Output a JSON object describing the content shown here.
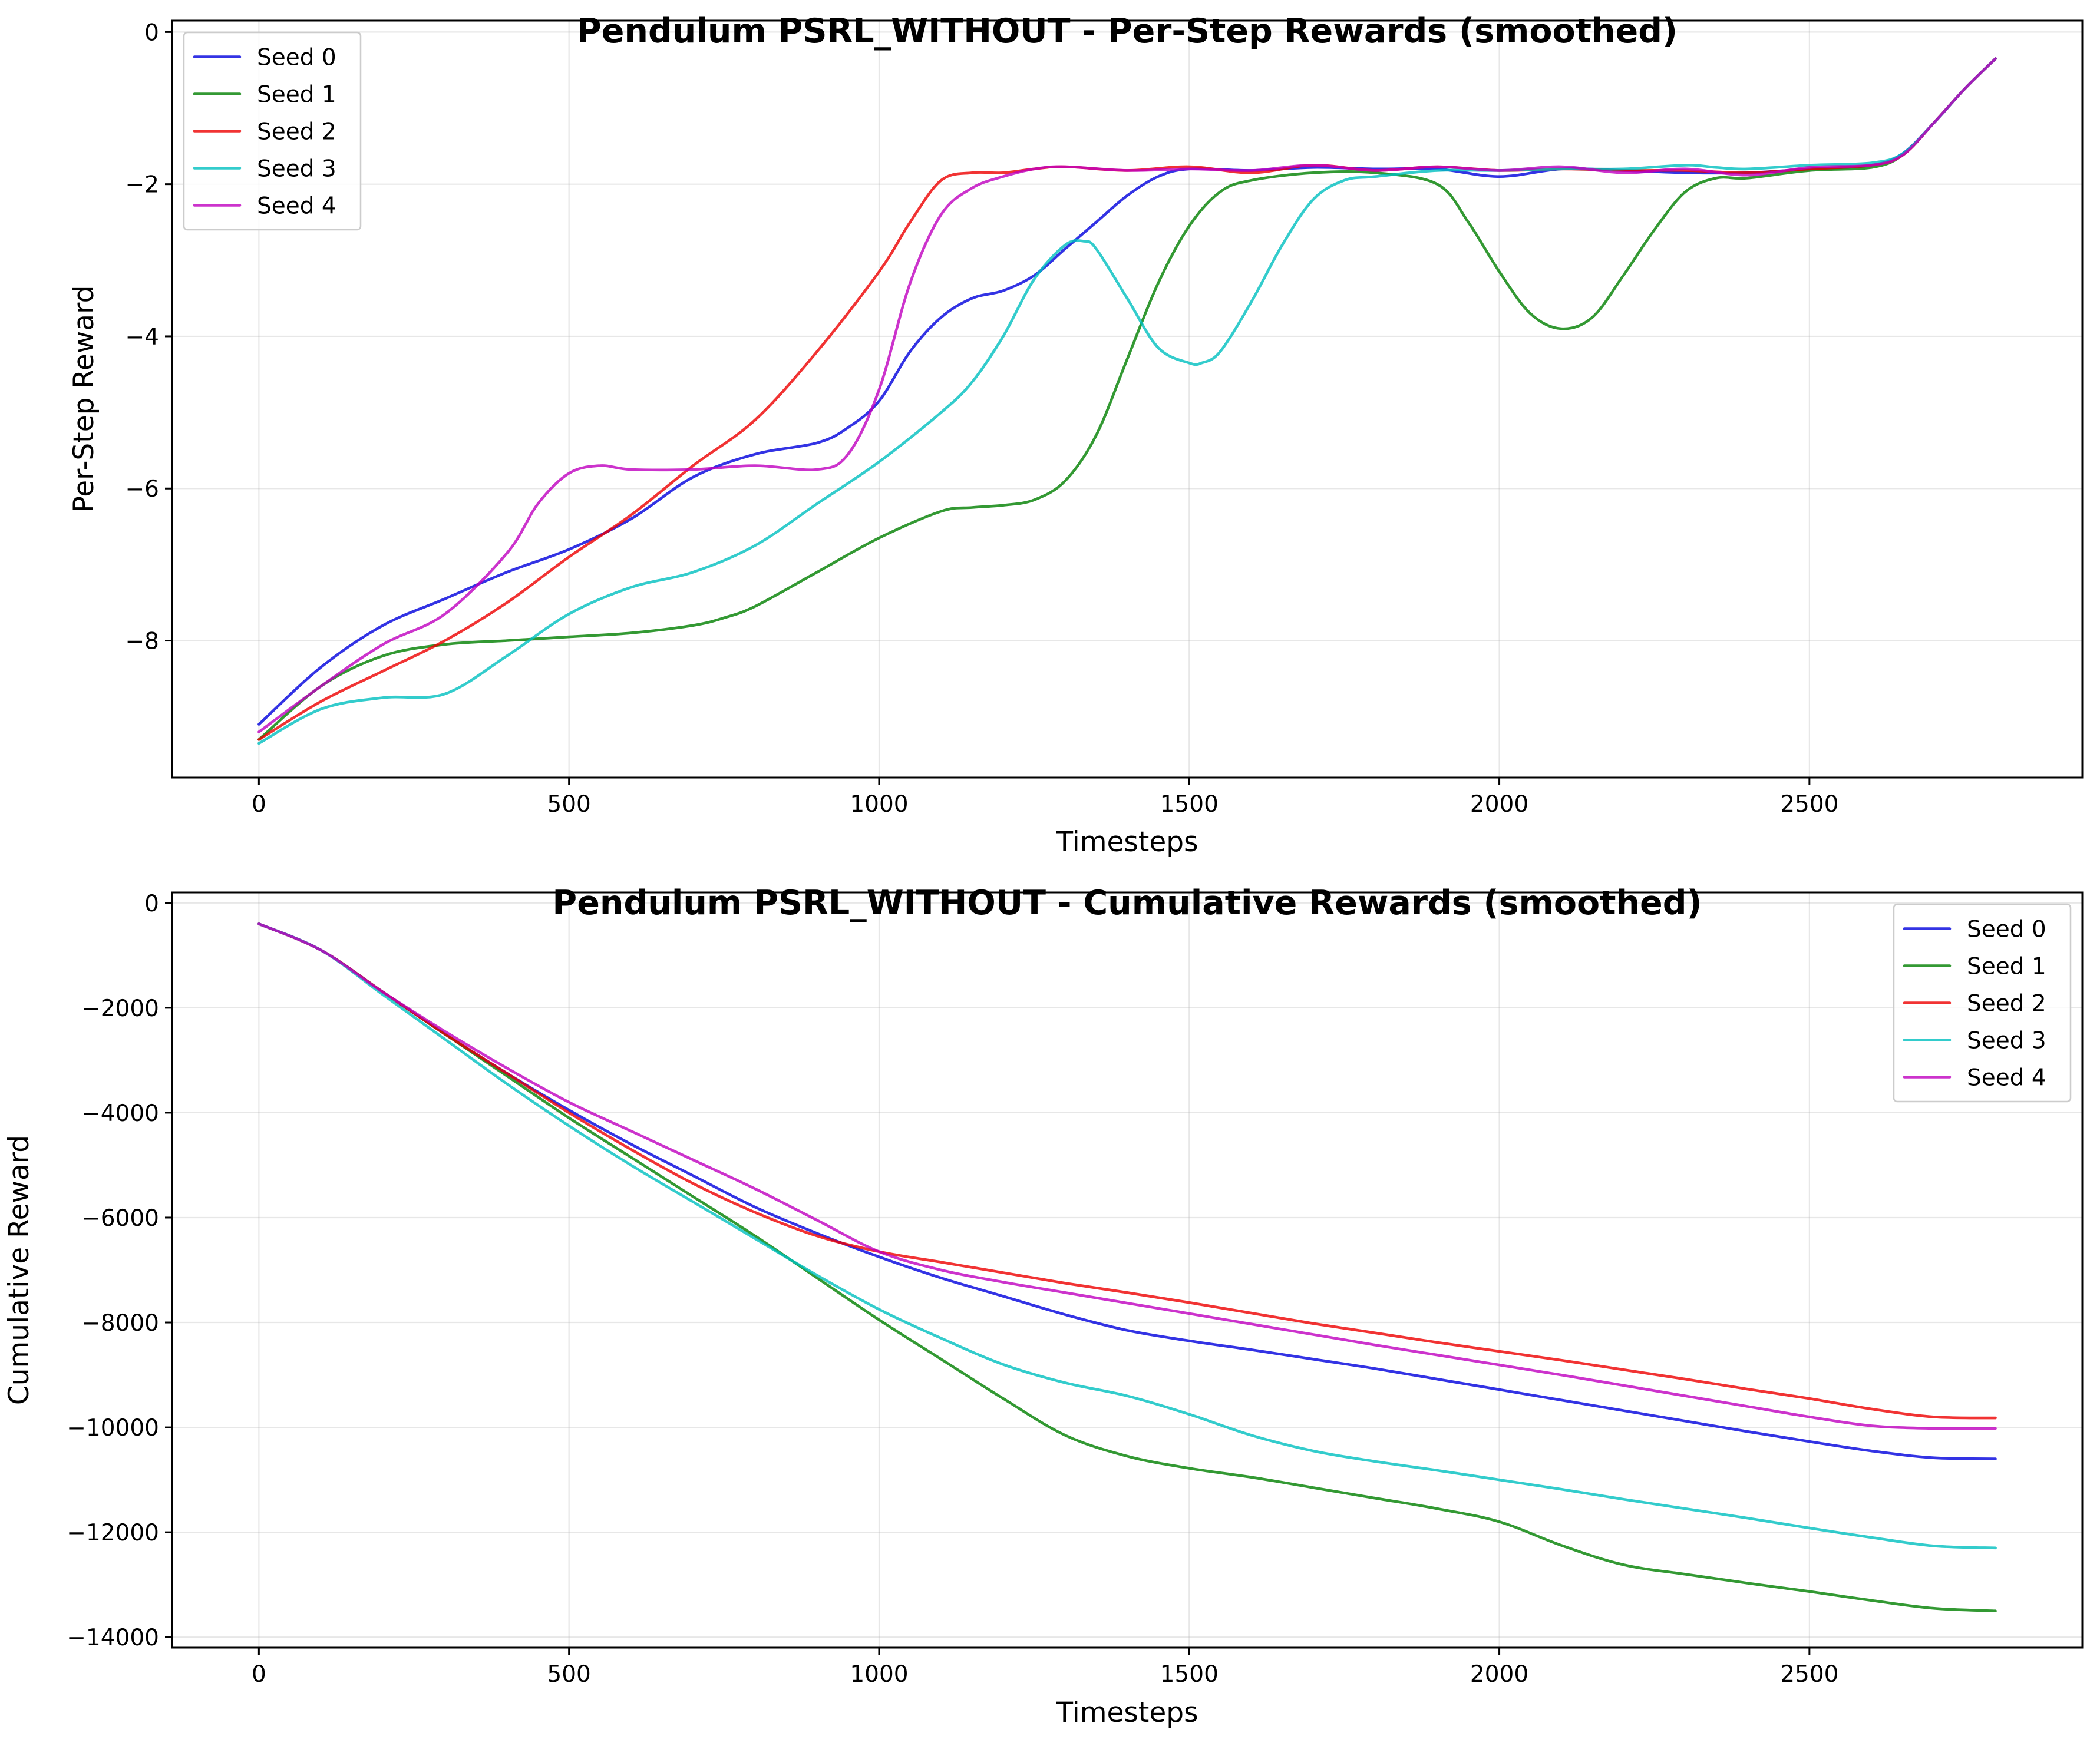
{
  "colors": {
    "seed0": "#0000dd",
    "seed1": "#008000",
    "seed2": "#ee0000",
    "seed3": "#00bfbf",
    "seed4": "#bf00bf"
  },
  "chart_data": [
    {
      "type": "line",
      "title": "Pendulum PSRL_WITHOUT - Per-Step Rewards (smoothed)",
      "xlabel": "Timesteps",
      "ylabel": "Per-Step Reward",
      "xlim": [
        -140,
        2940
      ],
      "ylim": [
        -9.8,
        0.15
      ],
      "xticks": [
        0,
        500,
        1000,
        1500,
        2000,
        2500
      ],
      "xtick_labels": [
        "0",
        "500",
        "1000",
        "1500",
        "2000",
        "2500"
      ],
      "yticks": [
        0,
        -2,
        -4,
        -6,
        -8
      ],
      "ytick_labels": [
        "0",
        "−2",
        "−4",
        "−6",
        "−8"
      ],
      "grid": true,
      "legend_position": "top-left",
      "series": [
        {
          "name": "Seed 0",
          "color_key": "seed0",
          "x": [
            0,
            100,
            200,
            300,
            400,
            500,
            600,
            700,
            800,
            900,
            950,
            1000,
            1050,
            1100,
            1150,
            1200,
            1250,
            1300,
            1350,
            1400,
            1450,
            1500,
            1600,
            1700,
            1800,
            1900,
            2000,
            2100,
            2200,
            2300,
            2400,
            2500,
            2600,
            2650,
            2700,
            2750,
            2800
          ],
          "y": [
            -9.1,
            -8.35,
            -7.8,
            -7.45,
            -7.1,
            -6.8,
            -6.4,
            -5.85,
            -5.55,
            -5.4,
            -5.2,
            -4.85,
            -4.2,
            -3.75,
            -3.5,
            -3.4,
            -3.2,
            -2.85,
            -2.5,
            -2.15,
            -1.9,
            -1.8,
            -1.82,
            -1.78,
            -1.8,
            -1.8,
            -1.9,
            -1.8,
            -1.82,
            -1.85,
            -1.85,
            -1.8,
            -1.75,
            -1.6,
            -1.2,
            -0.75,
            -0.35
          ]
        },
        {
          "name": "Seed 1",
          "color_key": "seed1",
          "x": [
            0,
            100,
            200,
            300,
            400,
            500,
            600,
            700,
            750,
            800,
            900,
            1000,
            1100,
            1150,
            1200,
            1250,
            1300,
            1350,
            1400,
            1450,
            1500,
            1550,
            1600,
            1700,
            1800,
            1900,
            1950,
            2000,
            2050,
            2100,
            2150,
            2200,
            2250,
            2300,
            2350,
            2400,
            2500,
            2600,
            2650,
            2700,
            2750,
            2800
          ],
          "y": [
            -9.3,
            -8.6,
            -8.2,
            -8.05,
            -8.0,
            -7.95,
            -7.9,
            -7.8,
            -7.7,
            -7.55,
            -7.1,
            -6.65,
            -6.3,
            -6.25,
            -6.22,
            -6.15,
            -5.9,
            -5.3,
            -4.3,
            -3.3,
            -2.55,
            -2.1,
            -1.95,
            -1.85,
            -1.85,
            -2.0,
            -2.5,
            -3.15,
            -3.7,
            -3.9,
            -3.75,
            -3.2,
            -2.6,
            -2.1,
            -1.92,
            -1.92,
            -1.82,
            -1.78,
            -1.62,
            -1.2,
            -0.75,
            -0.35
          ]
        },
        {
          "name": "Seed 2",
          "color_key": "seed2",
          "x": [
            0,
            100,
            200,
            300,
            400,
            500,
            600,
            700,
            800,
            900,
            1000,
            1050,
            1100,
            1150,
            1200,
            1250,
            1300,
            1400,
            1500,
            1600,
            1700,
            1800,
            1900,
            2000,
            2100,
            2200,
            2300,
            2400,
            2500,
            2600,
            2650,
            2700,
            2750,
            2800
          ],
          "y": [
            -9.3,
            -8.8,
            -8.4,
            -8.0,
            -7.5,
            -6.9,
            -6.35,
            -5.7,
            -5.1,
            -4.2,
            -3.15,
            -2.5,
            -1.95,
            -1.85,
            -1.85,
            -1.8,
            -1.77,
            -1.82,
            -1.77,
            -1.85,
            -1.75,
            -1.82,
            -1.77,
            -1.82,
            -1.8,
            -1.82,
            -1.82,
            -1.85,
            -1.8,
            -1.75,
            -1.62,
            -1.2,
            -0.75,
            -0.35
          ]
        },
        {
          "name": "Seed 3",
          "color_key": "seed3",
          "x": [
            0,
            100,
            200,
            300,
            400,
            500,
            600,
            700,
            800,
            900,
            1000,
            1100,
            1150,
            1200,
            1250,
            1300,
            1330,
            1350,
            1400,
            1450,
            1500,
            1520,
            1550,
            1600,
            1650,
            1700,
            1750,
            1800,
            1900,
            2000,
            2100,
            2200,
            2300,
            2350,
            2400,
            2500,
            2600,
            2650,
            2700,
            2750,
            2800
          ],
          "y": [
            -9.35,
            -8.9,
            -8.75,
            -8.7,
            -8.2,
            -7.65,
            -7.3,
            -7.1,
            -6.75,
            -6.2,
            -5.65,
            -5.0,
            -4.6,
            -4.0,
            -3.25,
            -2.8,
            -2.75,
            -2.85,
            -3.5,
            -4.15,
            -4.35,
            -4.35,
            -4.2,
            -3.55,
            -2.8,
            -2.2,
            -1.95,
            -1.9,
            -1.82,
            -1.82,
            -1.8,
            -1.8,
            -1.75,
            -1.78,
            -1.8,
            -1.75,
            -1.72,
            -1.6,
            -1.2,
            -0.75,
            -0.35
          ]
        },
        {
          "name": "Seed 4",
          "color_key": "seed4",
          "x": [
            0,
            100,
            200,
            300,
            400,
            450,
            500,
            550,
            600,
            700,
            800,
            900,
            950,
            1000,
            1050,
            1100,
            1150,
            1200,
            1250,
            1300,
            1400,
            1500,
            1600,
            1700,
            1800,
            1900,
            2000,
            2100,
            2200,
            2300,
            2400,
            2500,
            2600,
            2650,
            2700,
            2750,
            2800
          ],
          "y": [
            -9.2,
            -8.6,
            -8.05,
            -7.65,
            -6.85,
            -6.2,
            -5.8,
            -5.7,
            -5.75,
            -5.75,
            -5.7,
            -5.75,
            -5.55,
            -4.7,
            -3.3,
            -2.4,
            -2.05,
            -1.9,
            -1.8,
            -1.77,
            -1.82,
            -1.8,
            -1.82,
            -1.75,
            -1.82,
            -1.77,
            -1.82,
            -1.77,
            -1.85,
            -1.8,
            -1.88,
            -1.78,
            -1.75,
            -1.62,
            -1.2,
            -0.75,
            -0.35
          ]
        }
      ]
    },
    {
      "type": "line",
      "title": "Pendulum PSRL_WITHOUT - Cumulative Rewards (smoothed)",
      "xlabel": "Timesteps",
      "ylabel": "Cumulative Reward",
      "xlim": [
        -140,
        2940
      ],
      "ylim": [
        -14200,
        200
      ],
      "xticks": [
        0,
        500,
        1000,
        1500,
        2000,
        2500
      ],
      "xtick_labels": [
        "0",
        "500",
        "1000",
        "1500",
        "2000",
        "2500"
      ],
      "yticks": [
        0,
        -2000,
        -4000,
        -6000,
        -8000,
        -10000,
        -12000,
        -14000
      ],
      "ytick_labels": [
        "0",
        "−2000",
        "−4000",
        "−6000",
        "−8000",
        "−10000",
        "−12000",
        "−14000"
      ],
      "grid": true,
      "legend_position": "top-right",
      "series": [
        {
          "name": "Seed 0",
          "color_key": "seed0",
          "x": [
            0,
            100,
            200,
            300,
            400,
            500,
            600,
            700,
            800,
            900,
            1000,
            1100,
            1200,
            1300,
            1400,
            1500,
            1600,
            1700,
            1800,
            1900,
            2000,
            2100,
            2200,
            2300,
            2400,
            2500,
            2600,
            2700,
            2800
          ],
          "y": [
            -400,
            -900,
            -1700,
            -2500,
            -3250,
            -3950,
            -4600,
            -5200,
            -5800,
            -6300,
            -6750,
            -7150,
            -7500,
            -7850,
            -8150,
            -8350,
            -8520,
            -8700,
            -8880,
            -9080,
            -9280,
            -9480,
            -9680,
            -9880,
            -10080,
            -10270,
            -10450,
            -10580,
            -10600
          ]
        },
        {
          "name": "Seed 1",
          "color_key": "seed1",
          "x": [
            0,
            100,
            200,
            300,
            400,
            500,
            600,
            700,
            800,
            900,
            1000,
            1100,
            1200,
            1300,
            1400,
            1500,
            1600,
            1700,
            1800,
            1900,
            2000,
            2100,
            2200,
            2300,
            2400,
            2500,
            2600,
            2700,
            2800
          ],
          "y": [
            -400,
            -900,
            -1700,
            -2500,
            -3300,
            -4100,
            -4850,
            -5600,
            -6350,
            -7150,
            -7950,
            -8700,
            -9450,
            -10150,
            -10550,
            -10780,
            -10950,
            -11150,
            -11350,
            -11550,
            -11800,
            -12250,
            -12620,
            -12800,
            -12970,
            -13130,
            -13300,
            -13450,
            -13500
          ]
        },
        {
          "name": "Seed 2",
          "color_key": "seed2",
          "x": [
            0,
            100,
            200,
            300,
            400,
            500,
            600,
            700,
            800,
            900,
            1000,
            1100,
            1200,
            1300,
            1400,
            1500,
            1600,
            1700,
            1800,
            1900,
            2000,
            2100,
            2200,
            2300,
            2400,
            2500,
            2600,
            2700,
            2800
          ],
          "y": [
            -400,
            -900,
            -1700,
            -2500,
            -3250,
            -4000,
            -4700,
            -5350,
            -5900,
            -6350,
            -6650,
            -6850,
            -7050,
            -7250,
            -7430,
            -7620,
            -7820,
            -8020,
            -8200,
            -8380,
            -8550,
            -8720,
            -8900,
            -9080,
            -9270,
            -9450,
            -9650,
            -9800,
            -9820
          ]
        },
        {
          "name": "Seed 3",
          "color_key": "seed3",
          "x": [
            0,
            100,
            200,
            300,
            400,
            500,
            600,
            700,
            800,
            900,
            1000,
            1100,
            1200,
            1300,
            1400,
            1500,
            1600,
            1700,
            1800,
            1900,
            2000,
            2100,
            2200,
            2300,
            2400,
            2500,
            2600,
            2700,
            2800
          ],
          "y": [
            -400,
            -900,
            -1750,
            -2600,
            -3450,
            -4250,
            -5000,
            -5700,
            -6400,
            -7100,
            -7750,
            -8300,
            -8800,
            -9150,
            -9400,
            -9750,
            -10150,
            -10450,
            -10650,
            -10820,
            -11000,
            -11180,
            -11370,
            -11550,
            -11730,
            -11920,
            -12100,
            -12260,
            -12300
          ]
        },
        {
          "name": "Seed 4",
          "color_key": "seed4",
          "x": [
            0,
            100,
            200,
            300,
            400,
            500,
            600,
            700,
            800,
            900,
            1000,
            1100,
            1200,
            1300,
            1400,
            1500,
            1600,
            1700,
            1800,
            1900,
            2000,
            2100,
            2200,
            2300,
            2400,
            2500,
            2600,
            2700,
            2800
          ],
          "y": [
            -400,
            -900,
            -1700,
            -2450,
            -3150,
            -3800,
            -4350,
            -4900,
            -5450,
            -6050,
            -6650,
            -7000,
            -7230,
            -7430,
            -7630,
            -7830,
            -8030,
            -8230,
            -8430,
            -8620,
            -8810,
            -9000,
            -9200,
            -9400,
            -9600,
            -9800,
            -9970,
            -10020,
            -10020
          ]
        }
      ]
    }
  ]
}
